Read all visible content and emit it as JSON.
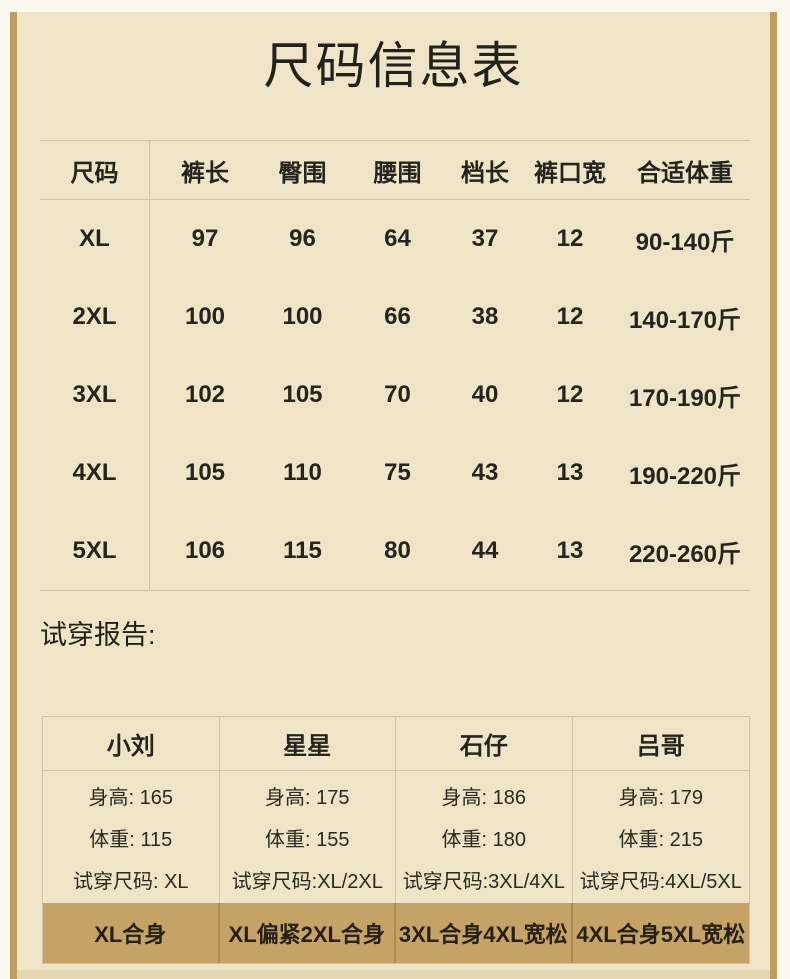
{
  "title": "尺码信息表",
  "report_label": "试穿报告:",
  "size_table": {
    "headers": [
      "尺码",
      "裤长",
      "臀围",
      "腰围",
      "档长",
      "裤口宽",
      "合适体重"
    ],
    "rows": [
      [
        "XL",
        "97",
        "96",
        "64",
        "37",
        "12",
        "90-140斤"
      ],
      [
        "2XL",
        "100",
        "100",
        "66",
        "38",
        "12",
        "140-170斤"
      ],
      [
        "3XL",
        "102",
        "105",
        "70",
        "40",
        "12",
        "170-190斤"
      ],
      [
        "4XL",
        "105",
        "110",
        "75",
        "43",
        "13",
        "190-220斤"
      ],
      [
        "5XL",
        "106",
        "115",
        "80",
        "44",
        "13",
        "220-260斤"
      ]
    ]
  },
  "fit_table": {
    "names": [
      "小刘",
      "星星",
      "石仔",
      "吕哥"
    ],
    "details": [
      [
        "身高: 165",
        "体重: 115",
        "试穿尺码: XL"
      ],
      [
        "身高: 175",
        "体重: 155",
        "试穿尺码:XL/2XL"
      ],
      [
        "身高: 186",
        "体重: 180",
        "试穿尺码:3XL/4XL"
      ],
      [
        "身高: 179",
        "体重: 215",
        "试穿尺码:4XL/5XL"
      ]
    ],
    "comments": [
      "XL合身",
      "XL偏紧2XL合身",
      "3XL合身4XL宽松",
      "4XL合身5XL宽松"
    ]
  },
  "colors": {
    "page_background": "#f0e4c7",
    "outer_background": "#fbf8ef",
    "frame_line": "#c09c5e",
    "table_line": "#cfc2a6",
    "comment_row_background": "#c5a266",
    "text": "#25231e"
  }
}
